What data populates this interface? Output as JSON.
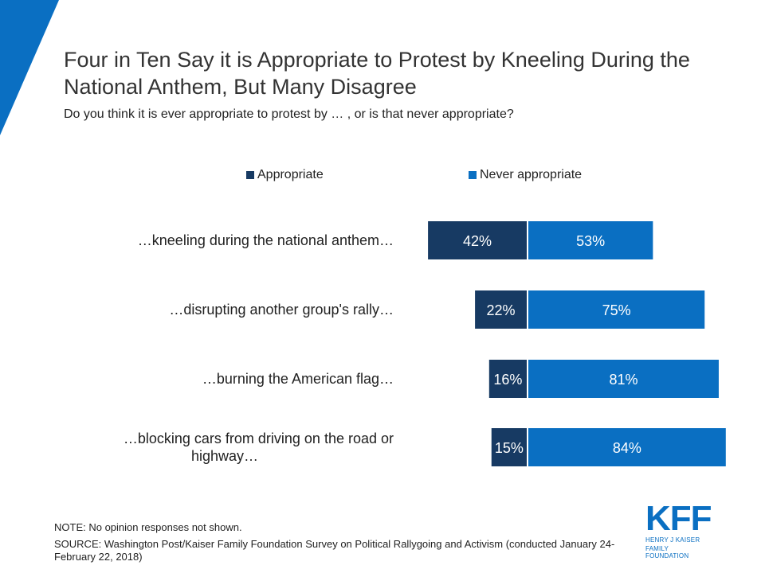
{
  "colors": {
    "appropriate": "#173a63",
    "never": "#0a6fc2",
    "accent": "#0a6fc2"
  },
  "title": "Four in Ten Say it is Appropriate to Protest by Kneeling During the National Anthem, But Many Disagree",
  "subtitle": "Do you think it is ever appropriate to protest by … , or is that never appropriate?",
  "legend": {
    "appropriate": "Appropriate",
    "never": "Never appropriate"
  },
  "chart_data": {
    "type": "bar",
    "orientation": "horizontal-diverging",
    "categories": [
      "…kneeling during the national anthem…",
      "…disrupting another group's rally…",
      "…burning the American flag…",
      "…blocking cars from driving on the road or highway…"
    ],
    "series": [
      {
        "name": "Appropriate",
        "values": [
          42,
          22,
          16,
          15
        ],
        "labels": [
          "42%",
          "22%",
          "16%",
          "15%"
        ]
      },
      {
        "name": "Never appropriate",
        "values": [
          53,
          75,
          81,
          84
        ],
        "labels": [
          "53%",
          "75%",
          "81%",
          "84%"
        ]
      }
    ],
    "unit": "%",
    "legend_position": "top"
  },
  "footer": {
    "note": "NOTE: No opinion responses not shown.",
    "source": "SOURCE: Washington Post/Kaiser Family Foundation Survey on Political Rallygoing and Activism (conducted January 24-February 22, 2018)"
  },
  "logo": {
    "mark": "KFF",
    "line1": "HENRY J KAISER",
    "line2": "FAMILY FOUNDATION"
  }
}
